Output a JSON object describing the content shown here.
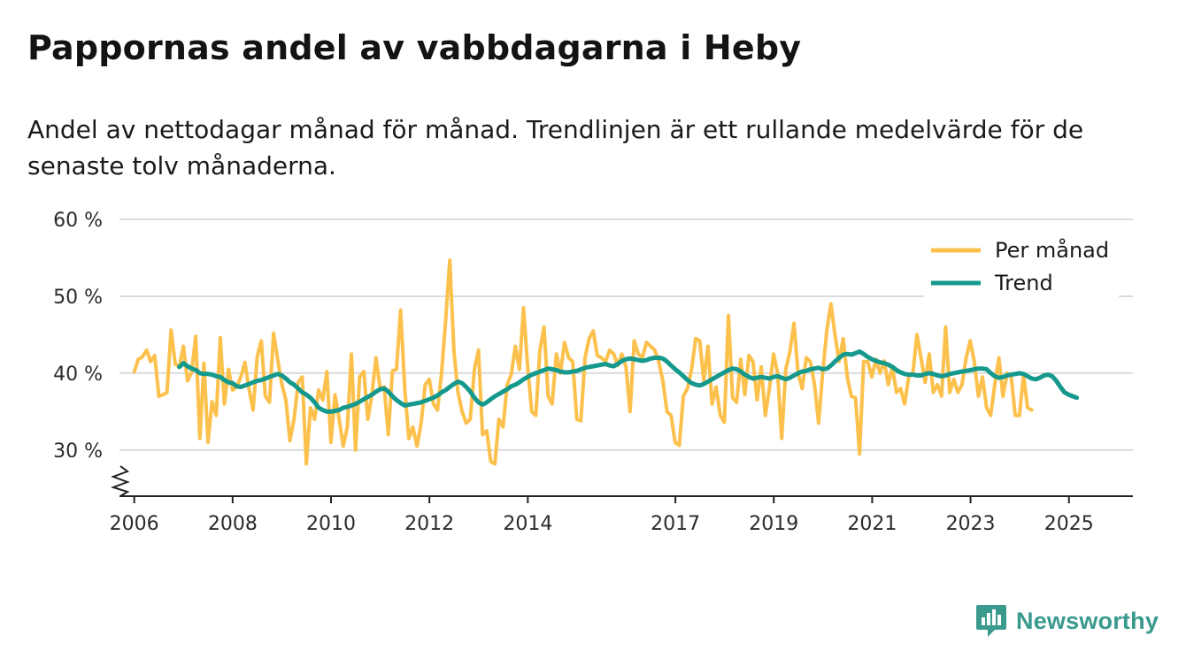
{
  "title": "Pappornas andel av vabbdagarna i Heby",
  "subtitle": "Andel av nettodagar månad för månad. Trendlinjen är ett rullande medelvärde för de senaste tolv månaderna.",
  "brand": {
    "name": "Newsworthy",
    "icon": "newsworthy-logo-icon"
  },
  "colors": {
    "monthly": "#fcc14c",
    "trend": "#14998c",
    "grid": "#dcdcdc",
    "axis": "#222222",
    "brand": "#3a9a8e"
  },
  "chart_data": {
    "type": "line",
    "title": "Pappornas andel av vabbdagarna i Heby",
    "xlabel": "",
    "ylabel": "",
    "ylim": [
      24,
      60
    ],
    "xlim": [
      2005.7,
      2026.3
    ],
    "y_ticks": [
      30,
      40,
      50,
      60
    ],
    "y_tick_labels": [
      "30 %",
      "40 %",
      "50 %",
      "60 %"
    ],
    "x_ticks": [
      2006,
      2008,
      2010,
      2012,
      2014,
      2017,
      2019,
      2021,
      2023,
      2025
    ],
    "x_tick_labels": [
      "2006",
      "2008",
      "2010",
      "2012",
      "2014",
      "2017",
      "2019",
      "2021",
      "2023",
      "2025"
    ],
    "grid": true,
    "legend_position": "top-right",
    "axis_break": true,
    "series": [
      {
        "name": "Per månad",
        "x_start": 2006.0,
        "x_step": 0.0833,
        "values": [
          40.2,
          41.8,
          42.1,
          43.0,
          41.5,
          42.3,
          37.0,
          37.2,
          37.5,
          45.6,
          41.2,
          40.8,
          43.5,
          39.0,
          40.1,
          44.8,
          31.5,
          41.3,
          31.0,
          36.3,
          34.5,
          44.6,
          36.0,
          40.5,
          37.8,
          38.2,
          39.5,
          41.4,
          38.0,
          35.2,
          42.1,
          44.2,
          37.0,
          36.2,
          45.2,
          41.8,
          38.6,
          36.5,
          31.2,
          34.0,
          38.8,
          39.5,
          28.2,
          35.5,
          34.0,
          37.8,
          36.5,
          40.2,
          31.0,
          37.2,
          34.0,
          30.5,
          33.0,
          42.5,
          30.0,
          39.5,
          40.2,
          34.0,
          37.2,
          42.0,
          38.0,
          38.2,
          32.0,
          40.3,
          40.5,
          48.2,
          38.0,
          31.5,
          33.0,
          30.5,
          33.5,
          38.5,
          39.2,
          36.0,
          35.2,
          40.0,
          47.0,
          54.7,
          43.0,
          37.5,
          35.0,
          33.5,
          34.0,
          40.5,
          43.0,
          32.0,
          32.5,
          28.5,
          28.2,
          34.0,
          33.0,
          38.5,
          39.8,
          43.5,
          40.5,
          48.5,
          40.8,
          35.0,
          34.5,
          43.0,
          46.0,
          37.0,
          36.0,
          42.5,
          40.0,
          44.0,
          42.0,
          41.5,
          34.0,
          33.8,
          42.0,
          44.5,
          45.5,
          42.3,
          42.0,
          41.5,
          43.0,
          42.5,
          41.0,
          42.5,
          40.8,
          35.0,
          44.2,
          42.5,
          42.0,
          44.0,
          43.5,
          43.0,
          41.5,
          39.0,
          35.0,
          34.5,
          31.0,
          30.6,
          37.0,
          38.0,
          40.5,
          44.5,
          44.2,
          39.0,
          43.5,
          36.0,
          38.2,
          34.5,
          33.6,
          47.5,
          36.8,
          36.2,
          41.8,
          37.2,
          42.3,
          41.5,
          36.5,
          40.8,
          34.5,
          38.0,
          42.5,
          40.0,
          31.5,
          40.5,
          42.8,
          46.5,
          40.0,
          38.0,
          42.0,
          41.5,
          38.5,
          33.5,
          40.0,
          45.5,
          49.0,
          45.0,
          41.5,
          44.5,
          39.5,
          37.0,
          36.8,
          29.5,
          41.5,
          41.5,
          39.5,
          41.8,
          40.0,
          41.6,
          38.5,
          40.8,
          37.5,
          38.0,
          36.0,
          39.5,
          40.0,
          45.0,
          42.0,
          38.8,
          42.5,
          37.5,
          38.5,
          37.0,
          46.0,
          37.5,
          39.2,
          37.5,
          38.5,
          42.0,
          44.2,
          41.5,
          37.0,
          39.5,
          35.5,
          34.5,
          38.5,
          42.0,
          37.0,
          40.0,
          39.5,
          34.5,
          34.5,
          39.8,
          35.5,
          35.2
        ]
      },
      {
        "name": "Trend",
        "x_start": 2006.917,
        "x_step": 0.0833,
        "values": [
          40.8,
          41.3,
          40.9,
          40.6,
          40.4,
          40.0,
          39.9,
          39.9,
          39.8,
          39.6,
          39.5,
          39.1,
          38.8,
          38.7,
          38.3,
          38.2,
          38.4,
          38.6,
          38.8,
          39.0,
          39.1,
          39.3,
          39.5,
          39.7,
          39.9,
          39.7,
          39.3,
          38.8,
          38.5,
          38.0,
          37.5,
          37.2,
          36.8,
          36.2,
          35.5,
          35.2,
          35.0,
          35.0,
          35.1,
          35.2,
          35.5,
          35.6,
          35.8,
          36.0,
          36.3,
          36.6,
          36.9,
          37.2,
          37.6,
          37.9,
          38.0,
          37.6,
          37.0,
          36.5,
          36.1,
          35.8,
          35.9,
          36.0,
          36.1,
          36.2,
          36.4,
          36.6,
          36.8,
          37.1,
          37.5,
          37.8,
          38.2,
          38.6,
          38.9,
          38.7,
          38.2,
          37.6,
          36.8,
          36.2,
          35.9,
          36.2,
          36.6,
          37.0,
          37.3,
          37.6,
          37.9,
          38.3,
          38.5,
          38.8,
          39.2,
          39.5,
          39.8,
          40.0,
          40.2,
          40.4,
          40.6,
          40.5,
          40.4,
          40.2,
          40.1,
          40.1,
          40.2,
          40.3,
          40.5,
          40.7,
          40.8,
          40.9,
          41.0,
          41.1,
          41.2,
          41.0,
          40.9,
          41.2,
          41.6,
          41.8,
          41.9,
          41.8,
          41.7,
          41.6,
          41.7,
          41.9,
          42.0,
          42.0,
          41.9,
          41.5,
          41.0,
          40.5,
          40.1,
          39.6,
          39.1,
          38.7,
          38.5,
          38.4,
          38.6,
          38.9,
          39.2,
          39.5,
          39.8,
          40.1,
          40.4,
          40.6,
          40.5,
          40.2,
          39.8,
          39.5,
          39.3,
          39.4,
          39.5,
          39.4,
          39.3,
          39.5,
          39.6,
          39.4,
          39.2,
          39.4,
          39.7,
          40.0,
          40.2,
          40.3,
          40.5,
          40.6,
          40.7,
          40.5,
          40.6,
          41.0,
          41.5,
          42.0,
          42.4,
          42.5,
          42.4,
          42.6,
          42.8,
          42.5,
          42.1,
          41.8,
          41.6,
          41.4,
          41.3,
          41.1,
          40.8,
          40.4,
          40.1,
          39.9,
          39.8,
          39.8,
          39.7,
          39.7,
          39.9,
          40.0,
          39.9,
          39.7,
          39.6,
          39.7,
          39.9,
          40.0,
          40.1,
          40.2,
          40.3,
          40.4,
          40.5,
          40.6,
          40.6,
          40.5,
          40.0,
          39.6,
          39.4,
          39.5,
          39.7,
          39.8,
          39.9,
          40.0,
          39.9,
          39.6,
          39.3,
          39.2,
          39.4,
          39.7,
          39.8,
          39.6,
          39.0,
          38.2,
          37.5,
          37.2,
          37.0,
          36.8
        ]
      }
    ]
  }
}
